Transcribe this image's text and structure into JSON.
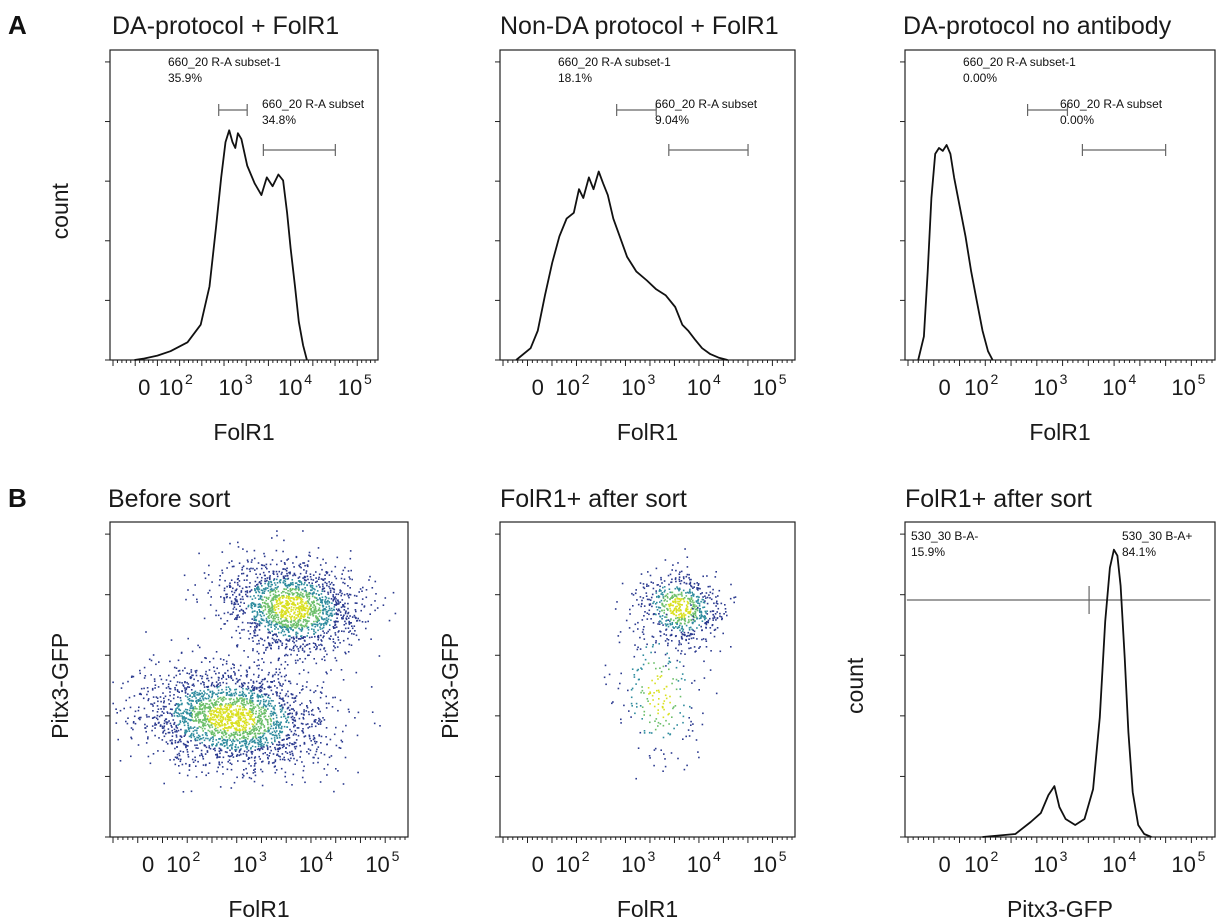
{
  "panel_labels": [
    "A",
    "B"
  ],
  "chart_data": [
    {
      "type": "histogram",
      "title": "DA-protocol + FolR1",
      "xlabel": "FolR1",
      "ylabel": "count",
      "x_ticks": [
        {
          "base": "0",
          "exp": ""
        },
        {
          "base": "10",
          "exp": "2"
        },
        {
          "base": "10",
          "exp": "3"
        },
        {
          "base": "10",
          "exp": "4"
        },
        {
          "base": "10",
          "exp": "5"
        }
      ],
      "x_scale": "biexponential",
      "gates": [
        {
          "name": "660_20 R-A subset-1",
          "percent": "35.9%",
          "range": [
            500,
            1500
          ]
        },
        {
          "name": "660_20 R-A subset",
          "percent": "34.8%",
          "range": [
            2800,
            45000
          ]
        }
      ],
      "curve": [
        [
          -30,
          0.0
        ],
        [
          0,
          0.005
        ],
        [
          40,
          0.015
        ],
        [
          80,
          0.03
        ],
        [
          150,
          0.06
        ],
        [
          250,
          0.12
        ],
        [
          350,
          0.25
        ],
        [
          450,
          0.45
        ],
        [
          550,
          0.62
        ],
        [
          650,
          0.74
        ],
        [
          750,
          0.78
        ],
        [
          850,
          0.74
        ],
        [
          950,
          0.72
        ],
        [
          1050,
          0.77
        ],
        [
          1200,
          0.75
        ],
        [
          1500,
          0.66
        ],
        [
          2000,
          0.6
        ],
        [
          2600,
          0.56
        ],
        [
          3200,
          0.62
        ],
        [
          4000,
          0.59
        ],
        [
          5000,
          0.63
        ],
        [
          6000,
          0.61
        ],
        [
          7000,
          0.5
        ],
        [
          8000,
          0.38
        ],
        [
          9500,
          0.25
        ],
        [
          11000,
          0.13
        ],
        [
          13000,
          0.05
        ],
        [
          15000,
          0.0
        ]
      ]
    },
    {
      "type": "histogram",
      "title": "Non-DA protocol + FolR1",
      "xlabel": "FolR1",
      "ylabel": "",
      "x_ticks": [
        {
          "base": "0",
          "exp": ""
        },
        {
          "base": "10",
          "exp": "2"
        },
        {
          "base": "10",
          "exp": "3"
        },
        {
          "base": "10",
          "exp": "4"
        },
        {
          "base": "10",
          "exp": "5"
        }
      ],
      "x_scale": "biexponential",
      "gates": [
        {
          "name": "660_20 R-A subset-1",
          "percent": "18.1%",
          "range": [
            450,
            1800
          ]
        },
        {
          "name": "660_20 R-A subset",
          "percent": "9.04%",
          "range": [
            2800,
            45000
          ]
        }
      ],
      "curve": [
        [
          -60,
          0.0
        ],
        [
          -20,
          0.04
        ],
        [
          0,
          0.1
        ],
        [
          20,
          0.22
        ],
        [
          40,
          0.33
        ],
        [
          60,
          0.42
        ],
        [
          80,
          0.48
        ],
        [
          100,
          0.5
        ],
        [
          120,
          0.58
        ],
        [
          140,
          0.55
        ],
        [
          170,
          0.62
        ],
        [
          200,
          0.58
        ],
        [
          240,
          0.64
        ],
        [
          280,
          0.6
        ],
        [
          330,
          0.56
        ],
        [
          400,
          0.48
        ],
        [
          500,
          0.42
        ],
        [
          650,
          0.35
        ],
        [
          900,
          0.3
        ],
        [
          1300,
          0.27
        ],
        [
          1800,
          0.24
        ],
        [
          2500,
          0.22
        ],
        [
          3500,
          0.18
        ],
        [
          4500,
          0.12
        ],
        [
          5500,
          0.1
        ],
        [
          7000,
          0.07
        ],
        [
          9000,
          0.04
        ],
        [
          12000,
          0.02
        ],
        [
          16000,
          0.008
        ],
        [
          22000,
          0.0
        ]
      ]
    },
    {
      "type": "histogram",
      "title": "DA-protocol no antibody",
      "xlabel": "FolR1",
      "ylabel": "",
      "x_ticks": [
        {
          "base": "0",
          "exp": ""
        },
        {
          "base": "10",
          "exp": "2"
        },
        {
          "base": "10",
          "exp": "3"
        },
        {
          "base": "10",
          "exp": "4"
        },
        {
          "base": "10",
          "exp": "5"
        }
      ],
      "x_scale": "biexponential",
      "gates": [
        {
          "name": "660_20 R-A subset-1",
          "percent": "0.00%",
          "range": [
            450,
            1700
          ]
        },
        {
          "name": "660_20 R-A subset",
          "percent": "0.00%",
          "range": [
            2800,
            45000
          ]
        }
      ],
      "curve": [
        [
          -70,
          0.0
        ],
        [
          -55,
          0.08
        ],
        [
          -45,
          0.3
        ],
        [
          -35,
          0.55
        ],
        [
          -25,
          0.7
        ],
        [
          -15,
          0.72
        ],
        [
          -5,
          0.71
        ],
        [
          5,
          0.73
        ],
        [
          15,
          0.7
        ],
        [
          25,
          0.62
        ],
        [
          40,
          0.52
        ],
        [
          55,
          0.42
        ],
        [
          70,
          0.3
        ],
        [
          85,
          0.2
        ],
        [
          100,
          0.1
        ],
        [
          120,
          0.03
        ],
        [
          140,
          0.0
        ]
      ]
    },
    {
      "type": "scatter",
      "title": "Before sort",
      "xlabel": "FolR1",
      "ylabel": "Pitx3-GFP",
      "x_ticks": [
        {
          "base": "0",
          "exp": ""
        },
        {
          "base": "10",
          "exp": "2"
        },
        {
          "base": "10",
          "exp": "3"
        },
        {
          "base": "10",
          "exp": "4"
        },
        {
          "base": "10",
          "exp": "5"
        }
      ],
      "x_scale": "biexponential",
      "clusters": [
        {
          "center": [
            4000,
            0.73
          ],
          "count": 1700
        },
        {
          "center": [
            500,
            0.38
          ],
          "count": 2300
        }
      ]
    },
    {
      "type": "scatter",
      "title": "FolR1+ after sort",
      "xlabel": "FolR1",
      "ylabel": "Pitx3-GFP",
      "x_ticks": [
        {
          "base": "0",
          "exp": ""
        },
        {
          "base": "10",
          "exp": "2"
        },
        {
          "base": "10",
          "exp": "3"
        },
        {
          "base": "10",
          "exp": "4"
        },
        {
          "base": "10",
          "exp": "5"
        }
      ],
      "x_scale": "biexponential",
      "clusters": [
        {
          "center": [
            4000,
            0.73
          ],
          "count": 650
        },
        {
          "center": [
            2000,
            0.45
          ],
          "count": 220
        }
      ]
    },
    {
      "type": "histogram",
      "title": "FolR1+ after sort",
      "xlabel": "Pitx3-GFP",
      "ylabel": "count",
      "x_ticks": [
        {
          "base": "0",
          "exp": ""
        },
        {
          "base": "10",
          "exp": "2"
        },
        {
          "base": "10",
          "exp": "3"
        },
        {
          "base": "10",
          "exp": "4"
        },
        {
          "base": "10",
          "exp": "5"
        }
      ],
      "x_scale": "biexponential",
      "gates": [
        {
          "name": "530_30 B-A-",
          "percent": "15.9%",
          "range": [
            -100,
            3500
          ]
        },
        {
          "name": "530_30 B-A+",
          "percent": "84.1%",
          "range": [
            3500,
            200000
          ]
        }
      ],
      "curve": [
        [
          100,
          0.0
        ],
        [
          300,
          0.01
        ],
        [
          500,
          0.05
        ],
        [
          700,
          0.08
        ],
        [
          900,
          0.14
        ],
        [
          1100,
          0.17
        ],
        [
          1300,
          0.1
        ],
        [
          1600,
          0.06
        ],
        [
          2200,
          0.04
        ],
        [
          3000,
          0.06
        ],
        [
          4000,
          0.16
        ],
        [
          5000,
          0.4
        ],
        [
          6000,
          0.72
        ],
        [
          7000,
          0.9
        ],
        [
          8000,
          0.96
        ],
        [
          9000,
          0.94
        ],
        [
          10000,
          0.84
        ],
        [
          11500,
          0.6
        ],
        [
          13000,
          0.35
        ],
        [
          15000,
          0.15
        ],
        [
          18000,
          0.04
        ],
        [
          22000,
          0.01
        ],
        [
          28000,
          0.0
        ]
      ]
    }
  ]
}
